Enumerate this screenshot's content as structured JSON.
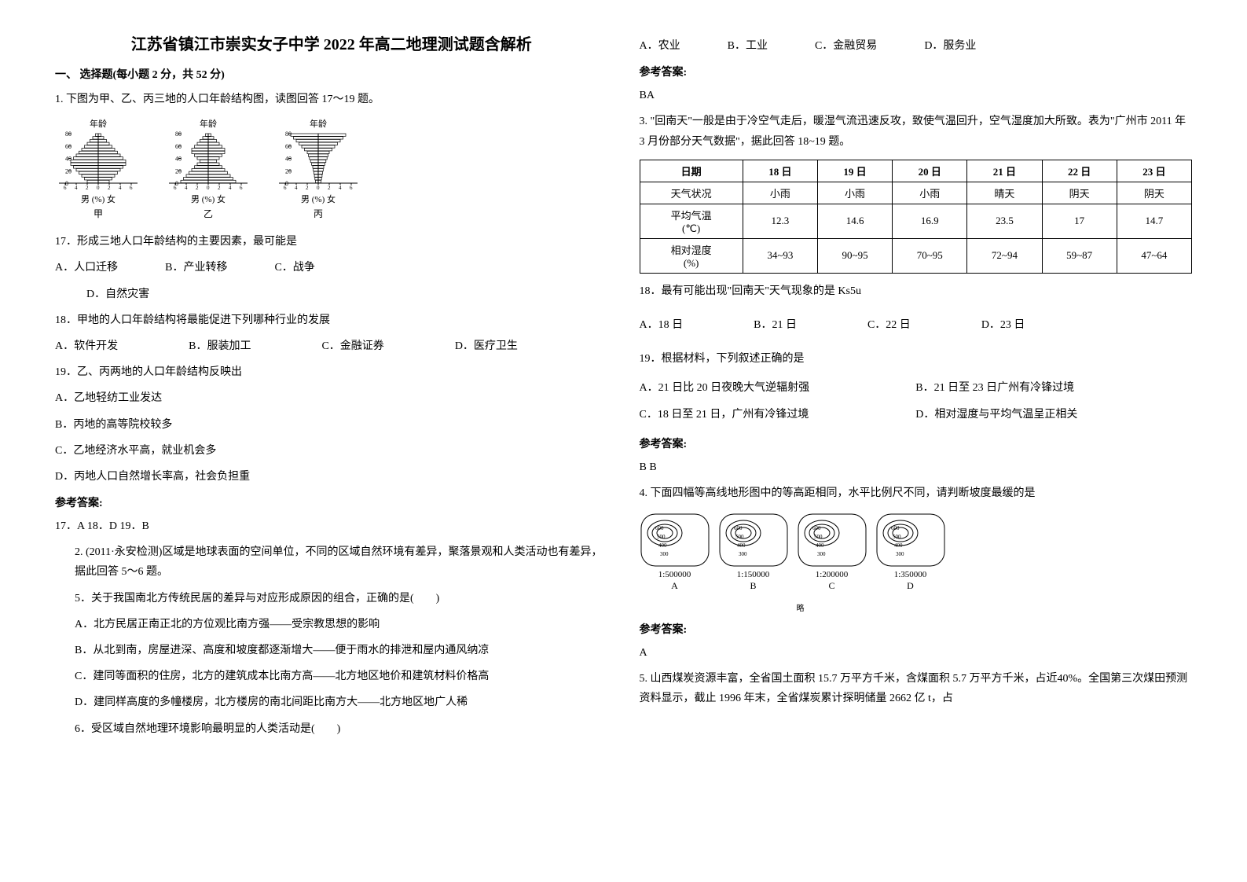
{
  "title": "江苏省镇江市崇实女子中学 2022 年高二地理测试题含解析",
  "section1_header": "一、 选择题(每小题 2 分，共 52 分)",
  "q1_intro": "1. 下图为甲、乙、丙三地的人口年龄结构图，读图回答 17～19 题。",
  "pyramid": {
    "axis_title": "年龄",
    "y_ticks": [
      "80",
      "60",
      "40",
      "20",
      "0"
    ],
    "x_labels_outer": [
      "6",
      "4",
      "2",
      "0",
      "2",
      "4",
      "6"
    ],
    "x_labels_inner": [
      "男",
      "(%)",
      "女"
    ],
    "colors": {
      "bar": "#000000",
      "axis": "#000000"
    },
    "names": [
      "甲",
      "乙",
      "丙"
    ],
    "jia_left": [
      0.5,
      1,
      1.5,
      2,
      2.5,
      3,
      3.5,
      4,
      4.5,
      5,
      5,
      4.5,
      4,
      3.5,
      3,
      2.5,
      2
    ],
    "jia_right": [
      0.5,
      1,
      1.5,
      2,
      2.5,
      3,
      3.5,
      4,
      4.5,
      5,
      5,
      4.5,
      4,
      3.5,
      3,
      2.5,
      2
    ],
    "yi_left": [
      0.5,
      1,
      1.5,
      2,
      2.5,
      3,
      3,
      2.5,
      2,
      1.5,
      2,
      2.5,
      3,
      3.5,
      4,
      4.5,
      5
    ],
    "yi_right": [
      0.5,
      1,
      1.5,
      2,
      2.5,
      3,
      3,
      2.5,
      2,
      1.5,
      2,
      2.5,
      3,
      3.5,
      4,
      4.5,
      5
    ],
    "bing_left": [
      5,
      4.5,
      4,
      3.5,
      3,
      2.5,
      2,
      1.8,
      1.6,
      1.4,
      1.2,
      1,
      0.9,
      0.8,
      0.7,
      0.6,
      0.5
    ],
    "bing_right": [
      5,
      4.5,
      4,
      3.5,
      3,
      2.5,
      2,
      1.8,
      1.6,
      1.4,
      1.2,
      1,
      0.9,
      0.8,
      0.7,
      0.6,
      0.5
    ]
  },
  "q17": {
    "stem": "17．形成三地人口年龄结构的主要因素，最可能是",
    "opts": [
      "A．人口迁移",
      "B．产业转移",
      "C．战争",
      "D．自然灾害"
    ]
  },
  "q18": {
    "stem": "18．甲地的人口年龄结构将最能促进下列哪种行业的发展",
    "opts": [
      "A．软件开发",
      "B．服装加工",
      "C．金融证券",
      "D．医疗卫生"
    ]
  },
  "q19": {
    "stem": "19．乙、丙两地的人口年龄结构反映出",
    "opts": [
      "A．乙地轻纺工业发达",
      "B．丙地的高等院校较多",
      "C．乙地经济水平高，就业机会多",
      "D．丙地人口自然增长率高，社会负担重"
    ]
  },
  "ans1_label": "参考答案:",
  "ans1_text": "17．A     18．D     19．B",
  "q2_intro": "2. (2011·永安检测)区域是地球表面的空间单位，不同的区域自然环境有差异，聚落景观和人类活动也有差异，据此回答 5～6 题。",
  "q5": {
    "stem": "5．关于我国南北方传统民居的差异与对应形成原因的组合，正确的是(　　)",
    "opts": [
      "A．北方民居正南正北的方位观比南方强——受宗教思想的影响",
      "B．从北到南，房屋进深、高度和坡度都逐渐增大——便于雨水的排泄和屋内通风纳凉",
      "C．建同等面积的住房，北方的建筑成本比南方高——北方地区地价和建筑材料价格高",
      "D．建同样高度的多幢楼房，北方楼房的南北间距比南方大——北方地区地广人稀"
    ]
  },
  "q6": {
    "stem": "6．受区域自然地理环境影响最明显的人类活动是(　　)",
    "opts": [
      "A．农业",
      "B．工业",
      "C．金融贸易",
      "D．服务业"
    ]
  },
  "ans2_label": "参考答案:",
  "ans2_text": "BA",
  "q3_intro": "3. \"回南天\"一般是由于冷空气走后，暖湿气流迅速反攻，致使气温回升，空气湿度加大所致。表为\"广州市  2011 年  3 月份部分天气数据\"，据此回答  18~19 题。",
  "table": {
    "headers": [
      "日期",
      "18 日",
      "19 日",
      "20 日",
      "21 日",
      "22 日",
      "23 日"
    ],
    "rows": [
      [
        "天气状况",
        "小雨",
        "小雨",
        "小雨",
        "晴天",
        "阴天",
        "阴天"
      ],
      [
        "平均气温\n(℃)",
        "12.3",
        "14.6",
        "16.9",
        "23.5",
        "17",
        "14.7"
      ],
      [
        "相对湿度\n(%)",
        "34~93",
        "90~95",
        "70~95",
        "72~94",
        "59~87",
        "47~64"
      ]
    ]
  },
  "q18b": {
    "stem": "18．最有可能出现\"回南天\"天气现象的是 Ks5u",
    "opts": [
      "A．18 日",
      "B．21 日",
      "C．22 日",
      "D．23 日"
    ]
  },
  "q19b": {
    "stem": "19．根据材料，下列叙述正确的是",
    "opts": [
      "A．21 日比 20 日夜晚大气逆辐射强",
      "B．21 日至 23 日广州有冷锋过境",
      "C．18 日至 21 日，广州有冷锋过境",
      "D．相对湿度与平均气温呈正相关"
    ]
  },
  "ans3_label": "参考答案:",
  "ans3_text": "B  B",
  "q4_intro": "4. 下面四幅等高线地形图中的等高距相同，水平比例尺不同，请判断坡度最缓的是",
  "topo": {
    "contours": [
      "600",
      "500",
      "400",
      "300"
    ],
    "scales": [
      "1:500000",
      "1:150000",
      "1:200000",
      "1:350000"
    ],
    "letters": [
      "A",
      "B",
      "C",
      "D"
    ],
    "line_color": "#000000",
    "sub_label": "略"
  },
  "ans4_label": "参考答案:",
  "ans4_text": "A",
  "q5b_text": "5. 山西煤炭资源丰富，全省国土面积 15.7 万平方千米，含煤面积 5.7 万平方千米，占近40%。全国第三次煤田预测资料显示，截止 1996 年末，全省煤炭累计探明储量 2662 亿 t，占"
}
